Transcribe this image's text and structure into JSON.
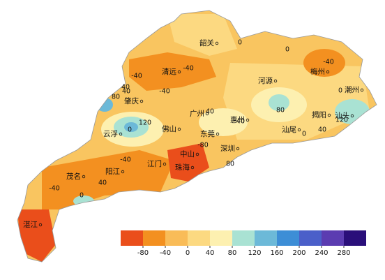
{
  "cities": [
    "韶关",
    "清远",
    "河源",
    "梅州",
    "潮州",
    "肇庆",
    "广州",
    "惠州",
    "揭阳",
    "汕头",
    "云浮",
    "佛山",
    "东莞",
    "汕尾",
    "深圳",
    "中山",
    "江门",
    "珠海",
    "阳江",
    "茂名",
    "湛江"
  ],
  "contour_labels": [
    0,
    0,
    -40,
    -40,
    -40,
    -40,
    40,
    80,
    40,
    120,
    0,
    40,
    80,
    40,
    -80,
    -40,
    40,
    0,
    -40,
    0,
    80,
    120,
    40,
    0
  ],
  "legend": {
    "colors": [
      "#ea4e1b",
      "#f39020",
      "#f9bc58",
      "#fcd981",
      "#fdf0b0",
      "#a9e2d3",
      "#6cb9d8",
      "#3d8ed6",
      "#4b5fc9",
      "#5b3cb1",
      "#2a0f7a"
    ],
    "ticks": [
      -80,
      -40,
      0,
      40,
      80,
      120,
      160,
      200,
      240,
      280
    ]
  }
}
